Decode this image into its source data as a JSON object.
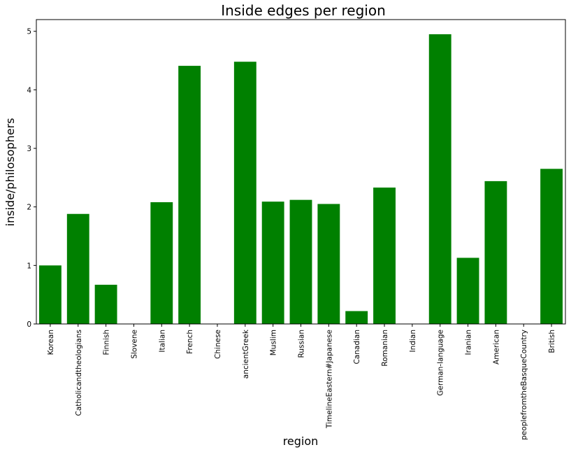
{
  "chart_data": {
    "type": "bar",
    "title": "Inside edges per region",
    "xlabel": "region",
    "ylabel": "inside/philosophers",
    "ylim": [
      0,
      5.2
    ],
    "yticks": [
      0,
      1,
      2,
      3,
      4,
      5
    ],
    "grid": false,
    "bar_color": "#008000",
    "categories": [
      "Korean",
      "Catholicandtheologians",
      "Finnish",
      "Slovene",
      "Italian",
      "French",
      "Chinese",
      "ancientGreek",
      "Muslim",
      "Russian",
      "TimelineEastern#Japanese",
      "Canadian",
      "Romanian",
      "Indian",
      "German-language",
      "Iranian",
      "American",
      "peoplefromtheBasqueCountry",
      "British"
    ],
    "values": [
      1.0,
      1.88,
      0.67,
      0.0,
      2.08,
      4.41,
      0.0,
      4.48,
      2.09,
      2.12,
      2.05,
      0.22,
      2.33,
      0.0,
      4.95,
      1.13,
      2.44,
      0.0,
      2.65
    ]
  }
}
